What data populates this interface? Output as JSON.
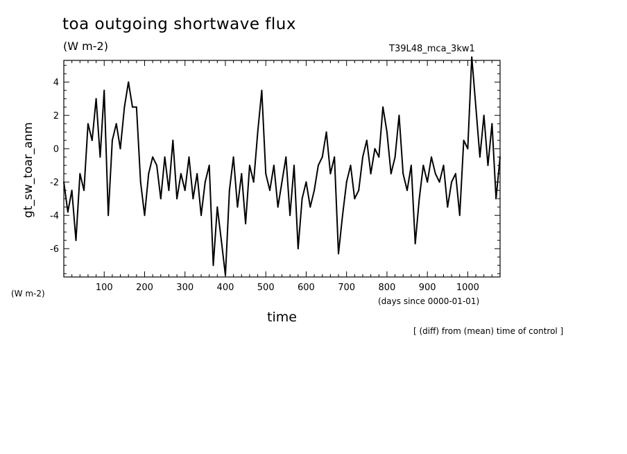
{
  "chart_data": {
    "type": "line",
    "title": "toa outgoing shortwave flux",
    "units": "(W m-2)",
    "run_label": "T39L48_mca_3kw1",
    "ylabel": "gt_sw_toar_anm",
    "y_units": "(W m-2)",
    "xlabel": "time",
    "x_units": "(days since 0000-01-01)",
    "note": "[ (diff) from (mean) time of control ]",
    "xlim": [
      0,
      1080
    ],
    "ylim": [
      -7.7,
      5.3
    ],
    "x_ticks": [
      "100",
      "200",
      "300",
      "400",
      "500",
      "600",
      "700",
      "800",
      "900",
      "1000"
    ],
    "y_ticks": [
      "4",
      "2",
      "0",
      "-2",
      "-4",
      "-6"
    ],
    "grid": false,
    "series": [
      {
        "color": "#000000",
        "x": [
          0,
          10,
          20,
          30,
          40,
          50,
          60,
          70,
          80,
          90,
          100,
          110,
          120,
          130,
          140,
          150,
          160,
          170,
          180,
          190,
          200,
          210,
          220,
          230,
          240,
          250,
          260,
          270,
          280,
          290,
          300,
          310,
          320,
          330,
          340,
          350,
          360,
          370,
          380,
          390,
          400,
          410,
          420,
          430,
          440,
          450,
          460,
          470,
          480,
          490,
          500,
          510,
          520,
          530,
          540,
          550,
          560,
          570,
          580,
          590,
          600,
          610,
          620,
          630,
          640,
          650,
          660,
          670,
          680,
          690,
          700,
          710,
          720,
          730,
          740,
          750,
          760,
          770,
          780,
          790,
          800,
          810,
          820,
          830,
          840,
          850,
          860,
          870,
          880,
          890,
          900,
          910,
          920,
          930,
          940,
          950,
          960,
          970,
          980,
          990,
          1000,
          1010,
          1020,
          1030,
          1040,
          1050,
          1060,
          1070,
          1080
        ],
        "y": [
          -2.0,
          -3.8,
          -2.5,
          -5.5,
          -1.5,
          -2.5,
          1.5,
          0.5,
          3.0,
          -0.5,
          3.5,
          -4.0,
          0.5,
          1.5,
          0.0,
          2.5,
          4.0,
          2.5,
          2.5,
          -2.0,
          -4.0,
          -1.5,
          -0.5,
          -1.0,
          -3.0,
          -0.5,
          -2.5,
          0.5,
          -3.0,
          -1.5,
          -2.5,
          -0.5,
          -3.0,
          -1.5,
          -4.0,
          -2.0,
          -1.0,
          -7.0,
          -3.5,
          -5.5,
          -7.6,
          -2.5,
          -0.5,
          -3.5,
          -1.5,
          -4.5,
          -1.0,
          -2.0,
          1.0,
          3.5,
          -1.5,
          -2.5,
          -1.0,
          -3.5,
          -2.0,
          -0.5,
          -4.0,
          -1.0,
          -6.0,
          -3.0,
          -2.0,
          -3.5,
          -2.5,
          -1.0,
          -0.5,
          1.0,
          -1.5,
          -0.5,
          -6.3,
          -4.0,
          -2.0,
          -1.0,
          -3.0,
          -2.5,
          -0.5,
          0.5,
          -1.5,
          0.0,
          -0.5,
          2.5,
          1.0,
          -1.5,
          -0.5,
          2.0,
          -1.5,
          -2.5,
          -1.0,
          -5.7,
          -3.0,
          -1.0,
          -2.0,
          -0.5,
          -1.5,
          -2.0,
          -1.0,
          -3.5,
          -2.0,
          -1.5,
          -4.0,
          0.5,
          0.0,
          5.5,
          2.5,
          -0.5,
          2.0,
          -1.0,
          1.5,
          -3.0,
          -0.5
        ]
      }
    ]
  }
}
